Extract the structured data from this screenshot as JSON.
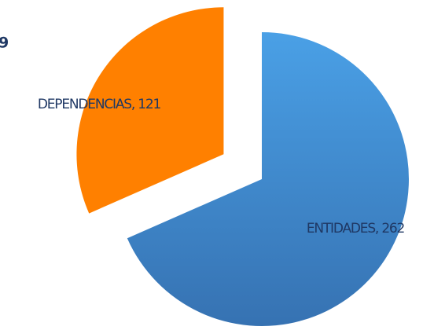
{
  "chart_data": {
    "type": "pie",
    "title": "9",
    "categories": [
      "ENTIDADES",
      "DEPENDENCIAS"
    ],
    "values": [
      262,
      121
    ],
    "value_labels": [
      "ENTIDADES, 262",
      "DEPENDENCIAS, 121"
    ],
    "colors": [
      "#4696dc",
      "#ff8000"
    ]
  }
}
